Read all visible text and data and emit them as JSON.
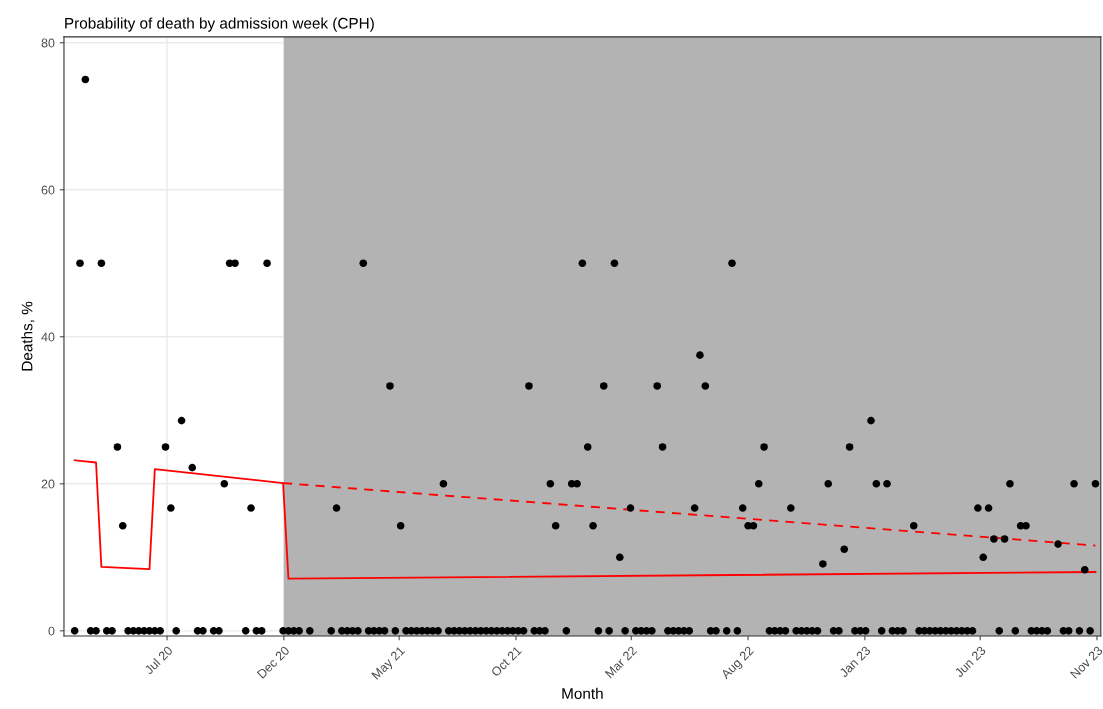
{
  "chart_data": {
    "type": "scatter",
    "title": "Probability of death by admission week (CPH)",
    "xlabel": "Month",
    "ylabel": "Deaths, %",
    "xlim": [
      "2020-02-17",
      "2023-11-06"
    ],
    "ylim": [
      -0.7,
      80.8
    ],
    "xticks": [
      {
        "value": "2020-07-01",
        "label": "Jul 20"
      },
      {
        "value": "2020-12-01",
        "label": "Dec 20"
      },
      {
        "value": "2021-05-01",
        "label": "May 21"
      },
      {
        "value": "2021-10-01",
        "label": "Oct 21"
      },
      {
        "value": "2022-03-01",
        "label": "Mar 22"
      },
      {
        "value": "2022-08-01",
        "label": "Aug 22"
      },
      {
        "value": "2023-01-01",
        "label": "Jan 23"
      },
      {
        "value": "2023-06-01",
        "label": "Jun 23"
      },
      {
        "value": "2023-11-01",
        "label": "Nov 23"
      }
    ],
    "yticks": [
      0,
      20,
      40,
      60,
      80
    ],
    "grid": true,
    "legend": false,
    "bands": [
      {
        "axis": "x",
        "from": "2020-12-01",
        "to": "2023-11-06",
        "color": "#b3b3b3"
      }
    ],
    "x": [
      "2020-03-02",
      "2020-03-09",
      "2020-03-16",
      "2020-03-23",
      "2020-03-30",
      "2020-04-06",
      "2020-04-13",
      "2020-04-20",
      "2020-04-27",
      "2020-05-04",
      "2020-05-11",
      "2020-05-18",
      "2020-05-25",
      "2020-06-01",
      "2020-06-08",
      "2020-06-15",
      "2020-06-22",
      "2020-06-29",
      "2020-07-06",
      "2020-07-13",
      "2020-07-20",
      "2020-07-27",
      "2020-08-03",
      "2020-08-10",
      "2020-08-17",
      "2020-08-24",
      "2020-08-31",
      "2020-09-07",
      "2020-09-14",
      "2020-09-21",
      "2020-09-28",
      "2020-10-05",
      "2020-10-12",
      "2020-10-19",
      "2020-10-26",
      "2020-11-02",
      "2020-11-09",
      "2020-11-16",
      "2020-11-23",
      "2020-11-30",
      "2020-12-07",
      "2020-12-14",
      "2020-12-21",
      "2020-12-28",
      "2021-01-04",
      "2021-01-11",
      "2021-01-18",
      "2021-01-25",
      "2021-02-01",
      "2021-02-08",
      "2021-02-15",
      "2021-02-22",
      "2021-03-01",
      "2021-03-08",
      "2021-03-15",
      "2021-03-22",
      "2021-03-29",
      "2021-04-05",
      "2021-04-12",
      "2021-04-19",
      "2021-04-26",
      "2021-05-03",
      "2021-05-10",
      "2021-05-17",
      "2021-05-24",
      "2021-05-31",
      "2021-06-07",
      "2021-06-14",
      "2021-06-21",
      "2021-06-28",
      "2021-07-05",
      "2021-07-12",
      "2021-07-19",
      "2021-07-26",
      "2021-08-02",
      "2021-08-09",
      "2021-08-16",
      "2021-08-23",
      "2021-08-30",
      "2021-09-06",
      "2021-09-13",
      "2021-09-20",
      "2021-09-27",
      "2021-10-04",
      "2021-10-11",
      "2021-10-18",
      "2021-10-25",
      "2021-11-01",
      "2021-11-08",
      "2021-11-15",
      "2021-11-22",
      "2021-11-29",
      "2021-12-06",
      "2021-12-13",
      "2021-12-20",
      "2021-12-27",
      "2022-01-03",
      "2022-01-10",
      "2022-01-17",
      "2022-01-24",
      "2022-01-31",
      "2022-02-07",
      "2022-02-14",
      "2022-02-21",
      "2022-02-28",
      "2022-03-07",
      "2022-03-14",
      "2022-03-21",
      "2022-03-28",
      "2022-04-04",
      "2022-04-11",
      "2022-04-18",
      "2022-04-25",
      "2022-05-02",
      "2022-05-09",
      "2022-05-16",
      "2022-05-23",
      "2022-05-30",
      "2022-06-06",
      "2022-06-13",
      "2022-06-20",
      "2022-06-27",
      "2022-07-04",
      "2022-07-11",
      "2022-07-18",
      "2022-07-25",
      "2022-08-01",
      "2022-08-08",
      "2022-08-15",
      "2022-08-22",
      "2022-08-29",
      "2022-09-05",
      "2022-09-12",
      "2022-09-19",
      "2022-09-26",
      "2022-10-03",
      "2022-10-10",
      "2022-10-17",
      "2022-10-24",
      "2022-10-31",
      "2022-11-07",
      "2022-11-14",
      "2022-11-21",
      "2022-11-28",
      "2022-12-05",
      "2022-12-12",
      "2022-12-19",
      "2022-12-26",
      "2023-01-02",
      "2023-01-09",
      "2023-01-16",
      "2023-01-23",
      "2023-01-30",
      "2023-02-06",
      "2023-02-13",
      "2023-02-20",
      "2023-02-27",
      "2023-03-06",
      "2023-03-13",
      "2023-03-20",
      "2023-03-27",
      "2023-04-03",
      "2023-04-10",
      "2023-04-17",
      "2023-04-24",
      "2023-05-01",
      "2023-05-08",
      "2023-05-15",
      "2023-05-22",
      "2023-05-29",
      "2023-06-05",
      "2023-06-12",
      "2023-06-19",
      "2023-06-26",
      "2023-07-03",
      "2023-07-10",
      "2023-07-17",
      "2023-07-24",
      "2023-07-31",
      "2023-08-07",
      "2023-08-14",
      "2023-08-21",
      "2023-08-28",
      "2023-09-04",
      "2023-09-11",
      "2023-09-18",
      "2023-09-25",
      "2023-10-02",
      "2023-10-09",
      "2023-10-16",
      "2023-10-23",
      "2023-10-30"
    ],
    "series": [
      {
        "marker": "circle",
        "color": "#000000",
        "values": [
          0,
          50,
          75,
          0,
          0,
          50,
          0,
          0,
          25,
          14.3,
          0,
          0,
          0,
          0,
          0,
          0,
          0,
          25,
          16.7,
          0,
          28.6,
          null,
          22.2,
          0,
          0,
          null,
          0,
          0,
          20,
          50,
          50,
          null,
          0,
          16.7,
          0,
          0,
          50,
          null,
          null,
          0,
          0,
          0,
          0,
          null,
          0,
          null,
          null,
          null,
          0,
          16.7,
          0,
          0,
          0,
          0,
          50,
          0,
          0,
          0,
          0,
          33.3,
          0,
          14.3,
          0,
          0,
          0,
          0,
          0,
          0,
          0,
          20,
          0,
          0,
          0,
          0,
          0,
          0,
          0,
          0,
          0,
          0,
          0,
          0,
          0,
          0,
          0,
          33.3,
          0,
          0,
          0,
          20,
          14.3,
          null,
          0,
          20,
          20,
          50,
          25,
          14.3,
          0,
          33.3,
          0,
          50,
          10,
          0,
          16.7,
          0,
          0,
          0,
          0,
          33.3,
          25,
          0,
          0,
          0,
          0,
          0,
          16.7,
          37.5,
          33.3,
          0,
          0,
          null,
          0,
          50,
          0,
          16.7,
          14.3,
          14.3,
          20,
          25,
          0,
          0,
          0,
          0,
          16.7,
          0,
          0,
          0,
          0,
          0,
          9.1,
          20,
          0,
          0,
          11.1,
          25,
          0,
          0,
          0,
          28.6,
          20,
          0,
          20,
          0,
          0,
          0,
          null,
          14.3,
          0,
          0,
          0,
          0,
          0,
          0,
          0,
          0,
          0,
          0,
          0,
          16.7,
          10,
          16.7,
          12.5,
          0,
          12.5,
          20,
          0,
          14.3,
          14.3,
          0,
          0,
          0,
          0,
          null,
          11.8,
          0,
          0,
          20,
          0,
          8.3,
          0,
          20
        ]
      },
      {
        "type": "line",
        "marker": "none",
        "color": "#ff0000",
        "line_style": "solid",
        "x": [
          "2020-03-02",
          "2020-03-30",
          "2020-04-06",
          "2020-06-08",
          "2020-06-15",
          "2020-11-30",
          "2020-12-07",
          "2023-10-30"
        ],
        "values": [
          23.2,
          22.9,
          8.7,
          8.4,
          22.0,
          20.1,
          7.1,
          8.0
        ]
      },
      {
        "type": "line",
        "marker": "none",
        "color": "#ff0000",
        "line_style": "dashed",
        "x": [
          "2020-11-30",
          "2023-10-30"
        ],
        "values": [
          20.1,
          11.6
        ]
      }
    ]
  }
}
